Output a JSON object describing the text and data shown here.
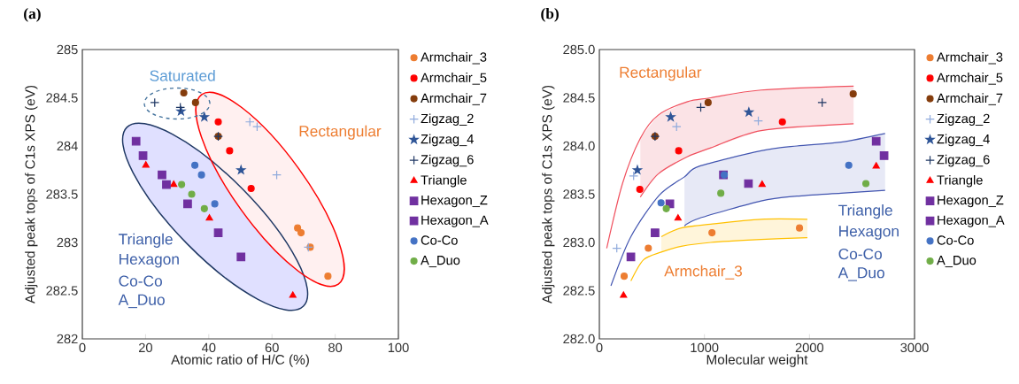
{
  "chart_data": [
    {
      "type": "scatter",
      "title": "(a)",
      "xlabel": "Atomic ratio of H/C (%)",
      "ylabel": "Adjusted peak tops of C1s XPS (eV)",
      "xlim": [
        0,
        100
      ],
      "xticks": [
        0,
        20,
        40,
        60,
        80,
        100
      ],
      "ylim": [
        282,
        285
      ],
      "yticks": [
        282,
        282.5,
        283,
        283.5,
        284,
        284.5,
        285
      ],
      "legend": "right",
      "grid": false,
      "annotations": [
        "Saturated",
        "Rectangular",
        "Triangle",
        "Hexagon",
        "Co-Co",
        "A_Duo"
      ],
      "series": [
        {
          "name": "Armchair_3",
          "color": "#ed7d31",
          "marker": "circle",
          "x": [
            68.1,
            69.2,
            72.1,
            77.7
          ],
          "values": [
            283.15,
            283.1,
            282.95,
            282.65
          ]
        },
        {
          "name": "Armchair_5",
          "color": "#ff0000",
          "marker": "circle",
          "x": [
            43.0,
            46.6,
            53.4
          ],
          "values": [
            284.25,
            283.95,
            283.56
          ]
        },
        {
          "name": "Armchair_7",
          "color": "#843c0c",
          "marker": "circle",
          "x": [
            32.1,
            35.8,
            43.0
          ],
          "values": [
            284.55,
            284.45,
            284.1
          ]
        },
        {
          "name": "Zigzag_2",
          "color": "#8faadc",
          "marker": "cross",
          "x": [
            53.0,
            55.3,
            61.5,
            71.5
          ],
          "values": [
            284.25,
            284.2,
            283.7,
            282.95
          ]
        },
        {
          "name": "Zigzag_4",
          "color": "#2f5597",
          "marker": "star",
          "x": [
            31.2,
            38.6,
            50.2
          ],
          "values": [
            284.36,
            284.3,
            283.75
          ]
        },
        {
          "name": "Zigzag_6",
          "color": "#203864",
          "marker": "cross",
          "x": [
            22.9,
            31.0,
            43.0
          ],
          "values": [
            284.45,
            284.4,
            284.1
          ]
        },
        {
          "name": "Triangle",
          "color": "#ff0000",
          "marker": "triangle",
          "x": [
            20.1,
            28.9,
            40.2,
            66.6
          ],
          "values": [
            283.8,
            283.6,
            283.25,
            282.45
          ]
        },
        {
          "name": "Hexagon_Z",
          "color": "#7030a0",
          "marker": "square",
          "x": [
            17.0,
            25.2,
            33.3,
            50.2
          ],
          "values": [
            284.05,
            283.7,
            283.4,
            282.85
          ]
        },
        {
          "name": "Hexagon_A",
          "color": "#7030a0",
          "marker": "square",
          "x": [
            19.2,
            26.6,
            43.0
          ],
          "values": [
            283.9,
            283.6,
            283.1
          ]
        },
        {
          "name": "Co-Co",
          "color": "#4472c4",
          "marker": "circle",
          "x": [
            35.6,
            37.7,
            41.9
          ],
          "values": [
            283.8,
            283.7,
            283.4
          ]
        },
        {
          "name": "A_Duo",
          "color": "#70ad47",
          "marker": "circle",
          "x": [
            31.4,
            34.6,
            38.6
          ],
          "values": [
            283.6,
            283.5,
            283.35
          ]
        }
      ]
    },
    {
      "type": "scatter",
      "title": "(b)",
      "xlabel": "Molecular weight",
      "ylabel": "Adjusted peak tops of C1s XPS (eV)",
      "xlim": [
        0,
        3000
      ],
      "xticks": [
        0,
        1000,
        2000,
        3000
      ],
      "ylim": [
        282,
        285
      ],
      "yticks": [
        {
          "value": 282,
          "label": "282.0"
        },
        {
          "value": 282.5,
          "label": "282.5"
        },
        {
          "value": 283,
          "label": "283.0"
        },
        {
          "value": 283.5,
          "label": "283.5"
        },
        {
          "value": 284,
          "label": "284.0"
        },
        {
          "value": 284.5,
          "label": "284.5"
        },
        {
          "value": 285,
          "label": "285.0"
        }
      ],
      "legend": "right",
      "grid": false,
      "annotations": [
        "Rectangular",
        "Armchair_3",
        "Triangle",
        "Hexagon",
        "Co-Co",
        "A_Duo"
      ],
      "series": [
        {
          "type": "area",
          "color": "#fbe3e6",
          "x": [
            390,
            560,
            840,
            1060,
            1540,
            2420
          ],
          "values": [
            null,
            null,
            null,
            null,
            null,
            null
          ],
          "upper": [
            284.08,
            284.32,
            284.46,
            284.5,
            284.58,
            284.62
          ],
          "lower": [
            283.47,
            283.71,
            283.89,
            283.98,
            284.16,
            284.23
          ]
        },
        {
          "type": "area",
          "color": "#e7e9f6",
          "x": [
            810,
            950,
            1540,
            1880,
            2300,
            2720
          ],
          "values": [
            null,
            null,
            null,
            null,
            null,
            null
          ],
          "upper": [
            283.68,
            283.79,
            283.95,
            284.0,
            284.04,
            284.13
          ],
          "lower": [
            283.17,
            283.25,
            283.43,
            283.48,
            283.51,
            283.54
          ]
        },
        {
          "type": "area",
          "color": "#fff5da",
          "x": [
            590,
            780,
            1060,
            1540,
            1980
          ],
          "values": [
            null,
            null,
            null,
            null,
            null
          ],
          "upper": [
            283.06,
            283.15,
            283.19,
            283.24,
            283.24
          ],
          "lower": [
            282.9,
            282.96,
            283.0,
            283.03,
            283.05
          ]
        },
        {
          "type": "line",
          "color": "#f0505e",
          "x": [
            70,
            220,
            390,
            560,
            840,
            1060,
            1540,
            2420
          ],
          "values": [
            282.94,
            283.61,
            284.08,
            284.32,
            284.46,
            284.5,
            284.58,
            284.62
          ]
        },
        {
          "type": "line",
          "color": "#f0505e",
          "x": [
            390,
            560,
            840,
            1060,
            1540,
            2420
          ],
          "values": [
            283.47,
            283.71,
            283.89,
            283.98,
            284.16,
            284.23
          ]
        },
        {
          "type": "line",
          "color": "#4255b0",
          "x": [
            110,
            300,
            570,
            810,
            950,
            1540,
            1880,
            2300,
            2720
          ],
          "values": [
            282.55,
            283.06,
            283.49,
            283.68,
            283.79,
            283.95,
            284.0,
            284.04,
            284.13
          ]
        },
        {
          "type": "line",
          "color": "#4255b0",
          "x": [
            810,
            950,
            1540,
            1880,
            2300,
            2720
          ],
          "values": [
            283.17,
            283.25,
            283.43,
            283.48,
            283.51,
            283.54
          ]
        },
        {
          "type": "line",
          "color": "#ffc000",
          "x": [
            590,
            780,
            1060,
            1540,
            1980
          ],
          "values": [
            283.06,
            283.15,
            283.19,
            283.24,
            283.24
          ]
        },
        {
          "type": "line",
          "color": "#ffc000",
          "x": [
            300,
            420,
            590,
            780,
            1060,
            1540,
            1980
          ],
          "values": [
            282.6,
            282.82,
            282.9,
            282.96,
            283.0,
            283.03,
            283.05
          ]
        },
        {
          "name": "Armchair_3",
          "color": "#ed7d31",
          "marker": "circle",
          "x": [
            236,
            466,
            1072,
            1905
          ],
          "values": [
            282.65,
            282.94,
            283.1,
            283.15
          ]
        },
        {
          "name": "Armchair_5",
          "color": "#ff0000",
          "marker": "circle",
          "x": [
            385,
            755,
            1742
          ],
          "values": [
            283.55,
            283.95,
            284.25
          ]
        },
        {
          "name": "Armchair_7",
          "color": "#843c0c",
          "marker": "circle",
          "x": [
            530,
            1035,
            2416
          ],
          "values": [
            284.1,
            284.45,
            284.54
          ]
        },
        {
          "name": "Zigzag_2",
          "color": "#8faadc",
          "marker": "cross",
          "x": [
            166,
            326,
            735,
            1513
          ],
          "values": [
            282.94,
            283.69,
            284.2,
            284.26
          ]
        },
        {
          "name": "Zigzag_4",
          "color": "#2f5597",
          "marker": "star",
          "x": [
            362,
            679,
            1423
          ],
          "values": [
            283.75,
            284.3,
            284.35
          ]
        },
        {
          "name": "Zigzag_6",
          "color": "#203864",
          "marker": "cross",
          "x": [
            530,
            965,
            2121
          ],
          "values": [
            284.1,
            284.4,
            284.45
          ]
        },
        {
          "name": "Triangle",
          "color": "#ff0000",
          "marker": "triangle",
          "x": [
            230,
            749,
            1549,
            2635
          ],
          "values": [
            282.45,
            283.25,
            283.6,
            283.79
          ]
        },
        {
          "name": "Hexagon_Z",
          "color": "#7030a0",
          "marker": "square",
          "x": [
            300,
            671,
            1181,
            2635
          ],
          "values": [
            282.85,
            283.4,
            283.7,
            284.05
          ]
        },
        {
          "name": "Hexagon_A",
          "color": "#7030a0",
          "marker": "square",
          "x": [
            530,
            1419,
            2710
          ],
          "values": [
            283.1,
            283.61,
            283.9
          ]
        },
        {
          "name": "Co-Co",
          "color": "#4472c4",
          "marker": "circle",
          "x": [
            587,
            1189,
            2374
          ],
          "values": [
            283.41,
            283.7,
            283.8
          ]
        },
        {
          "name": "A_Duo",
          "color": "#70ad47",
          "marker": "circle",
          "x": [
            637,
            1156,
            2537
          ],
          "values": [
            283.35,
            283.51,
            283.61
          ]
        }
      ]
    }
  ]
}
